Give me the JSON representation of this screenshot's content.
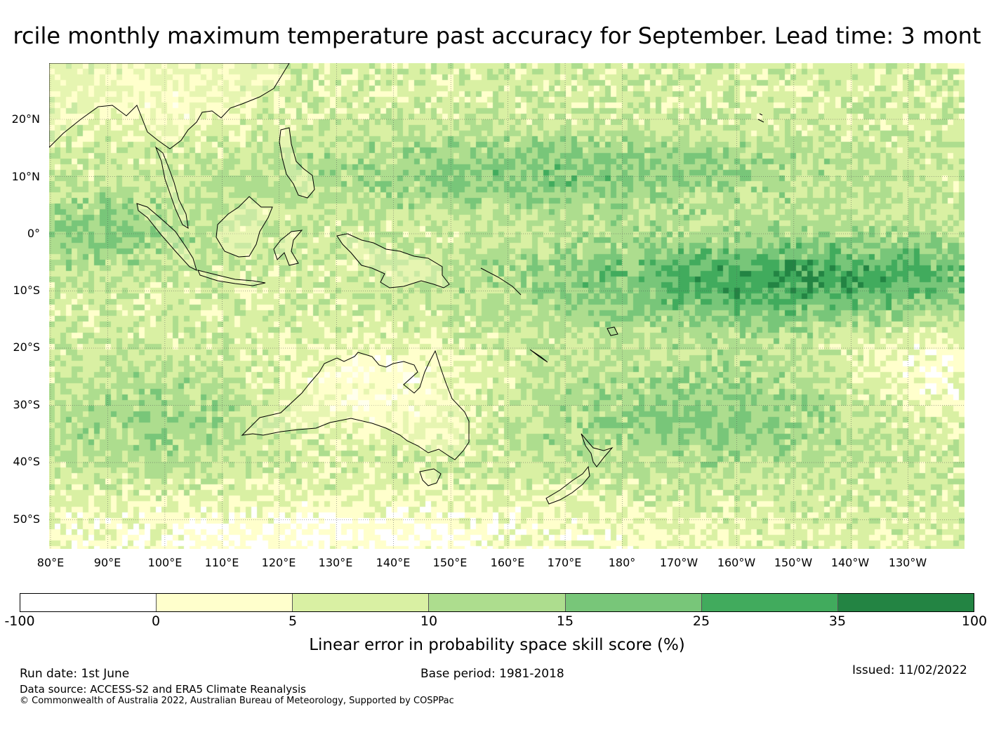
{
  "title": "rcile monthly maximum temperature past accuracy for September. Lead time: 3 mont",
  "map": {
    "lat_labels": [
      "20°N",
      "10°N",
      "0°",
      "10°S",
      "20°S",
      "30°S",
      "40°S",
      "50°S"
    ],
    "lon_labels": [
      "80°E",
      "90°E",
      "100°E",
      "110°E",
      "120°E",
      "130°E",
      "140°E",
      "150°E",
      "160°E",
      "170°E",
      "180°",
      "170°W",
      "160°W",
      "150°W",
      "140°W",
      "130°W"
    ]
  },
  "colorbar": {
    "ticks": [
      "-100",
      "0",
      "5",
      "10",
      "15",
      "25",
      "35",
      "100"
    ],
    "colors": [
      "#ffffff",
      "#ffffcc",
      "#d9f0a3",
      "#addd8e",
      "#78c679",
      "#41ab5d",
      "#238443"
    ],
    "label": "Linear error in probability space skill score (%)"
  },
  "footer": {
    "run_date": "Run date: 1st June",
    "base_period": "Base period: 1981-2018",
    "issued": "Issued: 11/02/2022",
    "data_source": "Data source: ACCESS-S2 and ERA5 Climate Reanalysis",
    "copyright": "© Commonwealth of Australia 2022, Australian Bureau of Meteorology, Supported by COSPPac"
  }
}
